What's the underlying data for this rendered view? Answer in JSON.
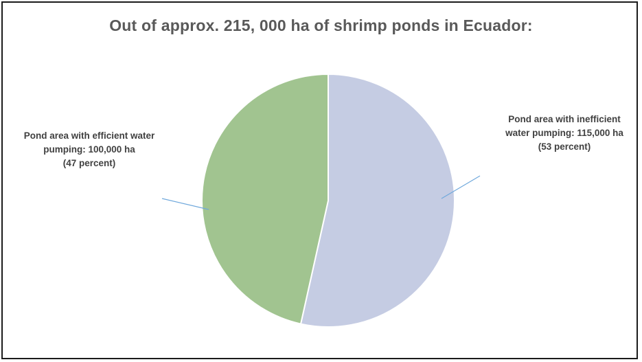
{
  "chart_data": {
    "type": "pie",
    "title": "Out of approx. 215, 000 ha of shrimp ponds in Ecuador:",
    "slices": [
      {
        "name": "Pond area with inefficient water pumping",
        "value": 115000,
        "percent": 53,
        "color": "#c5cce3",
        "label_lines": [
          "Pond area with inefficient",
          "water pumping: 115,000 ha",
          "(53 percent)"
        ]
      },
      {
        "name": "Pond area with efficient water pumping",
        "value": 100000,
        "percent": 47,
        "color": "#a1c490",
        "label_lines": [
          "Pond area with efficient water",
          "pumping: 100,000 ha",
          "(47 percent)"
        ]
      }
    ],
    "leader_line_color": "#6fa8dc"
  }
}
